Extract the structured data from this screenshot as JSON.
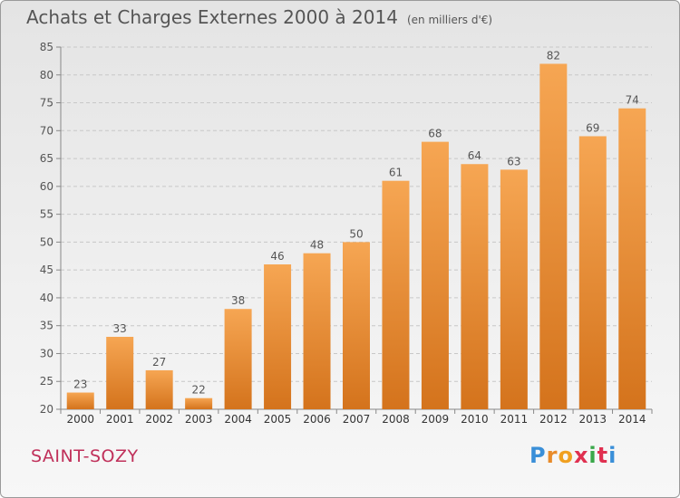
{
  "title": "Achats et Charges Externes 2000 à 2014",
  "unit": "(en milliers d'€)",
  "place": "SAINT-SOZY",
  "logo": {
    "text": "Proxiti",
    "letter_colors": [
      "#3a8fd8",
      "#e88b2a",
      "#f0a020",
      "#e03050",
      "#3aa84a",
      "#e03050",
      "#3a8fd8"
    ]
  },
  "colors": {
    "bar_top": "#f6a653",
    "bar_bottom": "#d4731c",
    "grid": "#c8c8c8",
    "text": "#555555"
  },
  "chart_data": {
    "type": "bar",
    "categories": [
      "2000",
      "2001",
      "2002",
      "2003",
      "2004",
      "2005",
      "2006",
      "2007",
      "2008",
      "2009",
      "2010",
      "2011",
      "2012",
      "2013",
      "2014"
    ],
    "values": [
      23,
      33,
      27,
      22,
      38,
      46,
      48,
      50,
      61,
      68,
      64,
      63,
      82,
      69,
      74
    ],
    "ylim": [
      20,
      85
    ],
    "yticks": [
      20,
      25,
      30,
      35,
      40,
      45,
      50,
      55,
      60,
      65,
      70,
      75,
      80,
      85
    ],
    "grid": true,
    "data_labels": true
  }
}
